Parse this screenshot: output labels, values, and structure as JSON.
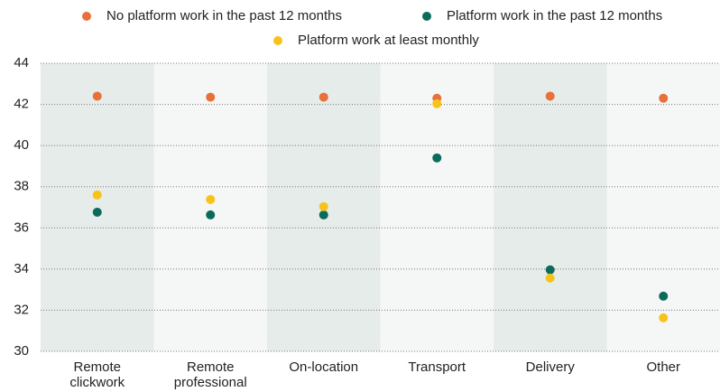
{
  "chart_data": {
    "type": "dot",
    "categories": [
      "Remote clickwork",
      "Remote professional",
      "On-location",
      "Transport",
      "Delivery",
      "Other"
    ],
    "series": [
      {
        "name": "No platform work in the past 12 months",
        "color": "#e8703a",
        "values": [
          42.4,
          42.35,
          42.35,
          42.3,
          42.4,
          42.3
        ]
      },
      {
        "name": "Platform work in the past 12 months",
        "color": "#0b6b5b",
        "values": [
          36.76,
          36.63,
          36.63,
          39.4,
          33.96,
          32.68
        ]
      },
      {
        "name": "Platform work at least monthly",
        "color": "#f7c31a",
        "values": [
          37.6,
          37.38,
          37.03,
          42.03,
          33.56,
          31.63
        ]
      }
    ],
    "ylim": [
      30,
      44
    ],
    "yticks": [
      30,
      32,
      34,
      36,
      38,
      40,
      42,
      44
    ],
    "grid": true,
    "band_colors": [
      "#e6ecea",
      "#f5f7f6"
    ]
  }
}
